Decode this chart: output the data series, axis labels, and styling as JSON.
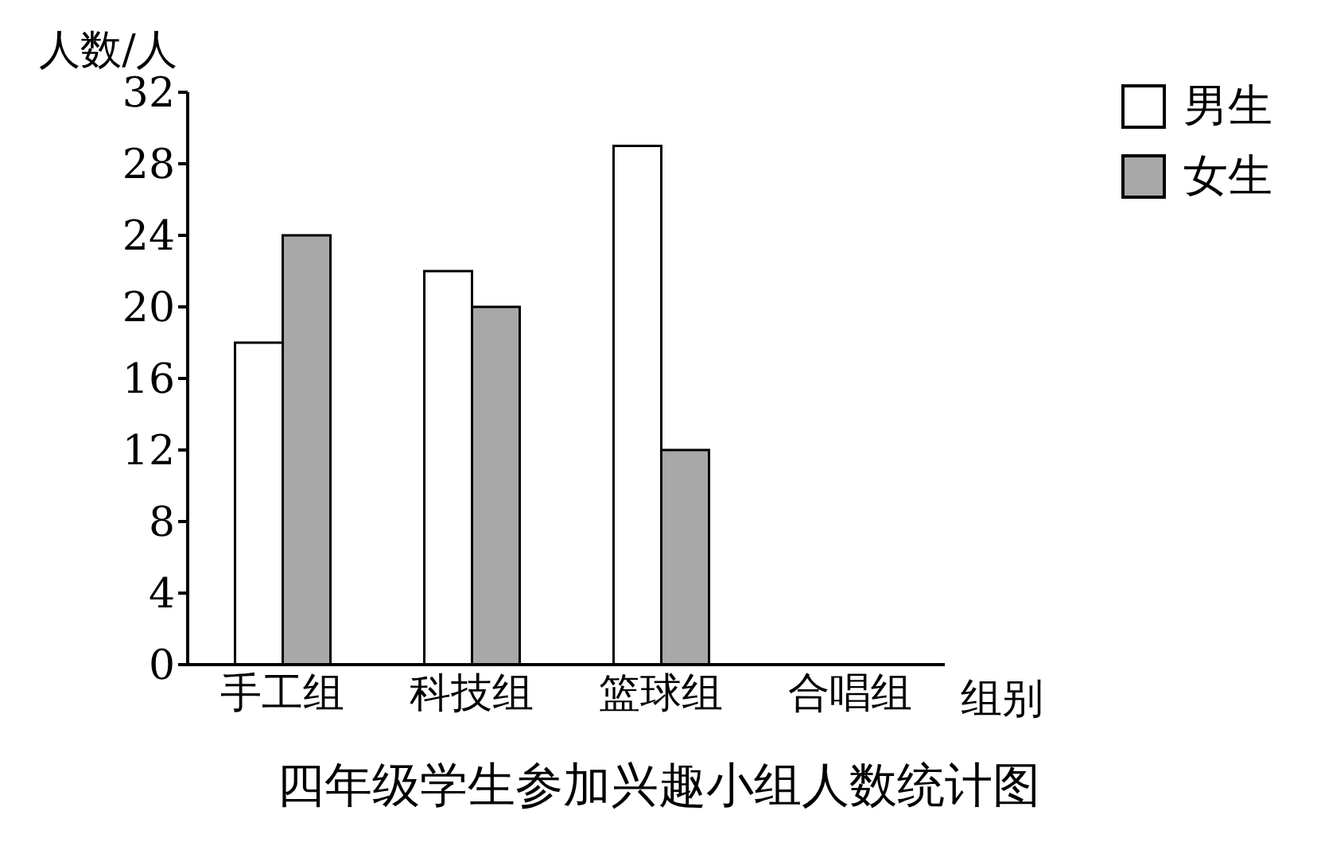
{
  "chart_data": {
    "type": "bar",
    "title": "四年级学生参加兴趣小组人数统计图",
    "xlabel": "组别",
    "ylabel": "人数/人",
    "categories": [
      "手工组",
      "科技组",
      "篮球组",
      "合唱组"
    ],
    "series": [
      {
        "name": "男生",
        "color": "#ffffff",
        "values": [
          18,
          22,
          29,
          null
        ]
      },
      {
        "name": "女生",
        "color": "#a8a8a8",
        "values": [
          24,
          20,
          12,
          null
        ]
      }
    ],
    "ylim": [
      0,
      32
    ],
    "yticks": [
      0,
      4,
      8,
      12,
      16,
      20,
      24,
      28,
      32
    ],
    "grid": false,
    "legend": "top right"
  }
}
